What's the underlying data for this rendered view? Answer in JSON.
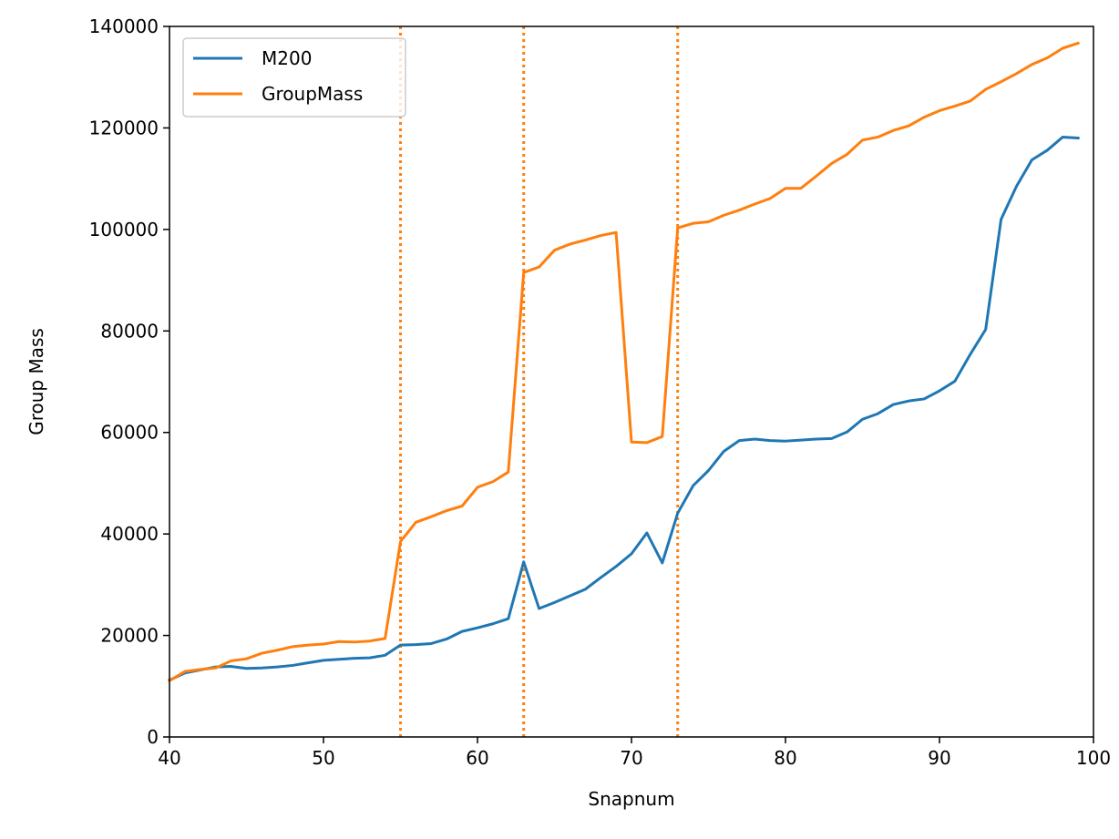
{
  "chart_data": {
    "type": "line",
    "title": "",
    "xlabel": "Snapnum",
    "ylabel": "Group Mass",
    "xlim": [
      40,
      100
    ],
    "ylim": [
      0,
      140000
    ],
    "xticks": [
      40,
      50,
      60,
      70,
      80,
      90,
      100
    ],
    "yticks": [
      0,
      20000,
      40000,
      60000,
      80000,
      100000,
      120000,
      140000
    ],
    "grid": false,
    "legend_position": "upper-left",
    "vlines": {
      "x": [
        55,
        63,
        73
      ],
      "style": "dotted",
      "color": "#ff7f0e"
    },
    "series": [
      {
        "name": "M200",
        "color": "#1f77b4",
        "x": [
          40,
          41,
          42,
          43,
          44,
          45,
          46,
          47,
          48,
          49,
          50,
          51,
          52,
          53,
          54,
          55,
          56,
          57,
          58,
          59,
          60,
          61,
          62,
          63,
          64,
          65,
          66,
          67,
          68,
          69,
          70,
          71,
          72,
          73,
          74,
          75,
          76,
          77,
          78,
          79,
          80,
          81,
          82,
          83,
          84,
          85,
          86,
          87,
          88,
          89,
          90,
          91,
          92,
          93,
          94,
          95,
          96,
          97,
          98,
          99
        ],
        "y": [
          11200,
          12600,
          13200,
          13800,
          13900,
          13500,
          13600,
          13800,
          14100,
          14600,
          15100,
          15300,
          15500,
          15600,
          16100,
          18100,
          18200,
          18400,
          19300,
          20800,
          21500,
          22300,
          23300,
          34500,
          25300,
          26500,
          27800,
          29100,
          31400,
          33600,
          36100,
          40200,
          34300,
          44100,
          49500,
          52500,
          56300,
          58400,
          58700,
          58400,
          58300,
          58500,
          58700,
          58800,
          60100,
          62600,
          63700,
          65500,
          66200,
          66600,
          68200,
          70100,
          75400,
          80300,
          102000,
          108500,
          113700,
          115600,
          118200,
          118000
        ]
      },
      {
        "name": "GroupMass",
        "color": "#ff7f0e",
        "x": [
          40,
          41,
          42,
          43,
          44,
          45,
          46,
          47,
          48,
          49,
          50,
          51,
          52,
          53,
          54,
          55,
          56,
          57,
          58,
          59,
          60,
          61,
          62,
          63,
          64,
          65,
          66,
          67,
          68,
          69,
          70,
          71,
          72,
          73,
          74,
          75,
          76,
          77,
          78,
          79,
          80,
          81,
          82,
          83,
          84,
          85,
          86,
          87,
          88,
          89,
          90,
          91,
          92,
          93,
          94,
          95,
          96,
          97,
          98,
          99
        ],
        "y": [
          11100,
          12900,
          13300,
          13600,
          15000,
          15400,
          16500,
          17100,
          17800,
          18100,
          18300,
          18800,
          18700,
          18900,
          19400,
          38500,
          42300,
          43400,
          44600,
          45500,
          49200,
          50300,
          52200,
          91500,
          92600,
          95900,
          97100,
          97900,
          98800,
          99400,
          58100,
          58000,
          59200,
          100300,
          101200,
          101500,
          102800,
          103800,
          105000,
          106100,
          108100,
          108100,
          110500,
          113000,
          114800,
          117600,
          118200,
          119500,
          120400,
          122100,
          123400,
          124300,
          125300,
          127600,
          129100,
          130700,
          132500,
          133800,
          135700,
          136700
        ]
      }
    ]
  }
}
